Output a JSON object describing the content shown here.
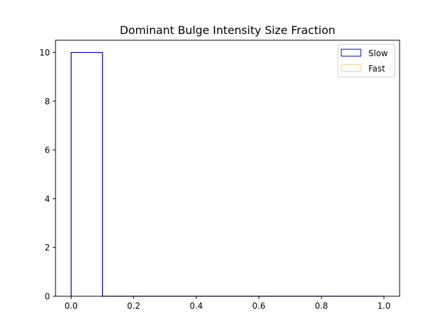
{
  "chart_data": {
    "type": "histogram",
    "title": "Dominant Bulge Intensity Size Fraction",
    "xlabel": "",
    "ylabel": "",
    "xlim": [
      -0.05,
      1.05
    ],
    "ylim": [
      0,
      10.5
    ],
    "xticks": [
      "0.0",
      "0.2",
      "0.4",
      "0.6",
      "0.8",
      "1.0"
    ],
    "xtick_values": [
      0.0,
      0.2,
      0.4,
      0.6,
      0.8,
      1.0
    ],
    "yticks": [
      "0",
      "2",
      "4",
      "6",
      "8",
      "10"
    ],
    "ytick_values": [
      0,
      2,
      4,
      6,
      8,
      10
    ],
    "bin_edges": [
      0.0,
      0.1,
      0.2,
      0.3,
      0.4,
      0.5,
      0.6,
      0.7,
      0.8,
      0.9,
      1.0
    ],
    "series": [
      {
        "name": "Slow",
        "style": "step",
        "color": "#0000cc",
        "counts": [
          10,
          0,
          0,
          0,
          0,
          0,
          0,
          0,
          0,
          0
        ]
      },
      {
        "name": "Fast",
        "style": "step",
        "color": "#ffa500",
        "counts": [
          10,
          0,
          0,
          0,
          0,
          0,
          0,
          0,
          0,
          0
        ]
      }
    ],
    "legend": {
      "position": "top-right",
      "entries": [
        "Slow",
        "Fast"
      ]
    },
    "grid": false
  }
}
